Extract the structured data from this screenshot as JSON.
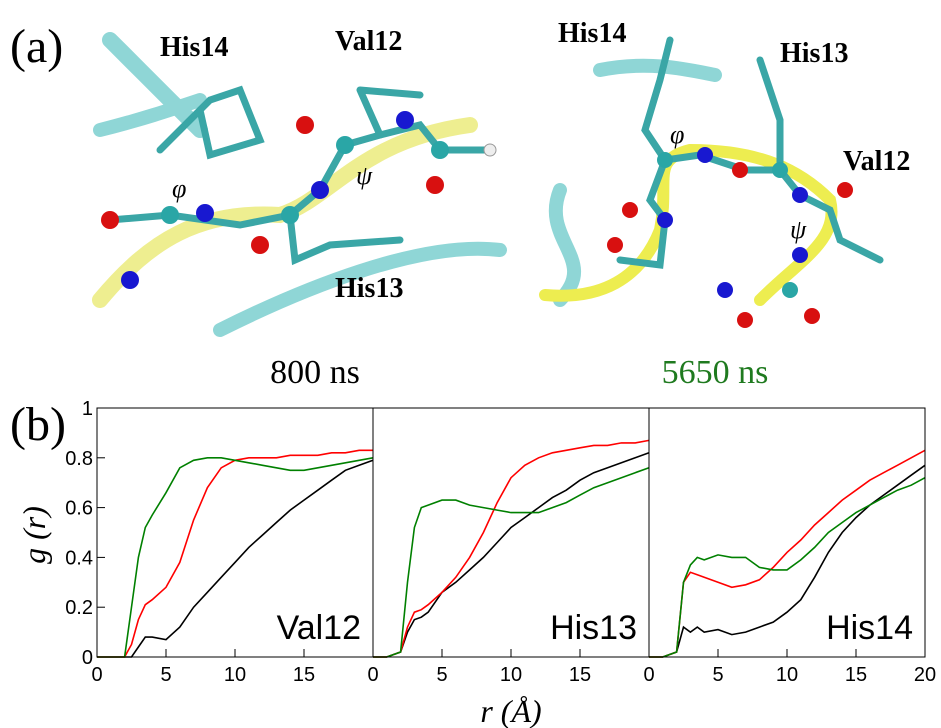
{
  "figure": {
    "panel_a": "(a)",
    "panel_b": "(b)",
    "left": {
      "labels": [
        "His14",
        "Val12",
        "His13"
      ],
      "phi": "φ",
      "psi": "ψ",
      "time": "800 ns"
    },
    "right": {
      "labels": [
        "His14",
        "His13",
        "Val12"
      ],
      "phi": "φ",
      "psi": "ψ",
      "time": "5650 ns"
    }
  },
  "chart_data": [
    {
      "type": "line",
      "annotation": "Val12",
      "ylabel": "g (r)",
      "x": [
        0,
        1,
        2,
        2.5,
        3,
        3.5,
        4,
        5,
        6,
        7,
        8,
        9,
        10,
        11,
        12,
        13,
        14,
        15,
        16,
        17,
        18,
        19,
        20
      ],
      "xlim": [
        0,
        20
      ],
      "ylim": [
        0,
        1
      ],
      "xticks": [
        0,
        5,
        10,
        15
      ],
      "yticks": [
        0,
        0.2,
        0.4,
        0.6,
        0.8,
        1
      ],
      "series": [
        {
          "color": "#000000",
          "values": [
            0,
            0,
            0,
            0,
            0.04,
            0.08,
            0.08,
            0.07,
            0.12,
            0.2,
            0.26,
            0.32,
            0.38,
            0.44,
            0.49,
            0.54,
            0.59,
            0.63,
            0.67,
            0.71,
            0.75,
            0.77,
            0.79
          ]
        },
        {
          "color": "#ff0000",
          "values": [
            0,
            0,
            0,
            0.05,
            0.15,
            0.21,
            0.23,
            0.28,
            0.38,
            0.55,
            0.68,
            0.76,
            0.79,
            0.8,
            0.8,
            0.8,
            0.81,
            0.81,
            0.81,
            0.82,
            0.82,
            0.83,
            0.83
          ]
        },
        {
          "color": "#008000",
          "values": [
            0,
            0,
            0,
            0.2,
            0.4,
            0.52,
            0.57,
            0.66,
            0.76,
            0.79,
            0.8,
            0.8,
            0.79,
            0.78,
            0.77,
            0.76,
            0.75,
            0.75,
            0.76,
            0.77,
            0.78,
            0.79,
            0.8
          ]
        }
      ]
    },
    {
      "type": "line",
      "annotation": "His13",
      "xlabel": "r (Å)",
      "x": [
        0,
        1,
        2,
        2.5,
        3,
        3.5,
        4,
        5,
        6,
        7,
        8,
        9,
        10,
        11,
        12,
        13,
        14,
        15,
        16,
        17,
        18,
        19,
        20
      ],
      "xlim": [
        0,
        20
      ],
      "ylim": [
        0,
        1
      ],
      "xticks": [
        0,
        5,
        10,
        15
      ],
      "series": [
        {
          "color": "#000000",
          "values": [
            0,
            0,
            0.02,
            0.1,
            0.15,
            0.16,
            0.18,
            0.26,
            0.3,
            0.35,
            0.4,
            0.46,
            0.52,
            0.56,
            0.6,
            0.64,
            0.67,
            0.71,
            0.74,
            0.76,
            0.78,
            0.8,
            0.82
          ]
        },
        {
          "color": "#ff0000",
          "values": [
            0,
            0,
            0.02,
            0.12,
            0.18,
            0.19,
            0.21,
            0.26,
            0.32,
            0.4,
            0.5,
            0.62,
            0.72,
            0.77,
            0.8,
            0.82,
            0.83,
            0.84,
            0.85,
            0.85,
            0.86,
            0.86,
            0.87
          ]
        },
        {
          "color": "#008000",
          "values": [
            0,
            0,
            0.02,
            0.3,
            0.52,
            0.6,
            0.61,
            0.63,
            0.63,
            0.61,
            0.6,
            0.59,
            0.58,
            0.58,
            0.58,
            0.6,
            0.62,
            0.65,
            0.68,
            0.7,
            0.72,
            0.74,
            0.76
          ]
        }
      ]
    },
    {
      "type": "line",
      "annotation": "His14",
      "x": [
        0,
        1,
        2,
        2.5,
        3,
        3.5,
        4,
        5,
        6,
        7,
        8,
        9,
        10,
        11,
        12,
        13,
        14,
        15,
        16,
        17,
        18,
        19,
        20
      ],
      "xlim": [
        0,
        20
      ],
      "ylim": [
        0,
        1
      ],
      "xticks": [
        0,
        5,
        10,
        15,
        20
      ],
      "series": [
        {
          "color": "#000000",
          "values": [
            0,
            0,
            0.02,
            0.12,
            0.1,
            0.12,
            0.1,
            0.11,
            0.09,
            0.1,
            0.12,
            0.14,
            0.18,
            0.23,
            0.32,
            0.42,
            0.5,
            0.56,
            0.61,
            0.65,
            0.69,
            0.73,
            0.77
          ]
        },
        {
          "color": "#ff0000",
          "values": [
            0,
            0,
            0.02,
            0.3,
            0.34,
            0.33,
            0.32,
            0.3,
            0.28,
            0.29,
            0.31,
            0.36,
            0.42,
            0.47,
            0.53,
            0.58,
            0.63,
            0.67,
            0.71,
            0.74,
            0.77,
            0.8,
            0.83
          ]
        },
        {
          "color": "#008000",
          "values": [
            0,
            0,
            0.02,
            0.3,
            0.37,
            0.4,
            0.39,
            0.41,
            0.4,
            0.4,
            0.36,
            0.35,
            0.35,
            0.39,
            0.44,
            0.5,
            0.54,
            0.58,
            0.61,
            0.64,
            0.67,
            0.69,
            0.72
          ]
        }
      ]
    }
  ]
}
